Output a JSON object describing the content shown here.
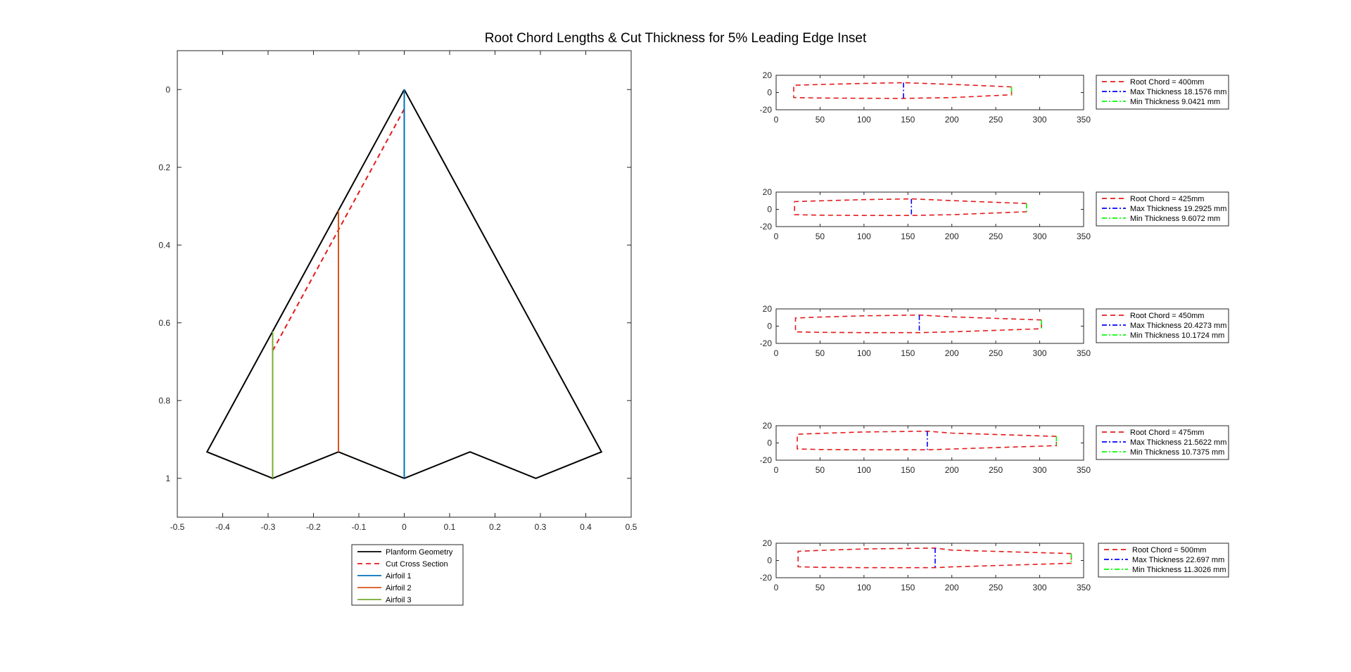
{
  "figure": {
    "title": "Root Chord Lengths & Cut Thickness for 5% Leading Edge Inset"
  },
  "chart_data": [
    {
      "type": "line",
      "title": "",
      "xlabel": "",
      "ylabel": "",
      "xlim": [
        -0.5,
        0.5
      ],
      "ylim": [
        -0.1,
        1.1
      ],
      "y_reversed": true,
      "grid": false,
      "legend_position": "below",
      "x_ticks": [
        -0.5,
        -0.4,
        -0.3,
        -0.2,
        -0.1,
        0,
        0.1,
        0.2,
        0.3,
        0.4,
        0.5
      ],
      "x_tick_labels": [
        "-0.5",
        "-0.4",
        "-0.3",
        "-0.2",
        "-0.1",
        "0",
        "0.1",
        "0.2",
        "0.3",
        "0.4",
        "0.5"
      ],
      "y_ticks": [
        0,
        0.2,
        0.4,
        0.6,
        0.8,
        1
      ],
      "y_tick_labels": [
        "0",
        "0.2",
        "0.4",
        "0.6",
        "0.8",
        "1"
      ],
      "series": [
        {
          "name": "Planform Geometry",
          "color": "#000000",
          "style": "solid",
          "x": [
            0,
            0.4346,
            0.2899,
            0.1449,
            0,
            -0.1449,
            -0.2899,
            -0.4346,
            0
          ],
          "y": [
            0,
            0.932,
            1.0,
            0.932,
            1.0,
            0.932,
            1.0,
            0.932,
            0
          ]
        },
        {
          "name": "Cut Cross Section",
          "color": "#e41a1c",
          "style": "dashed",
          "x": [
            0,
            -0.2899
          ],
          "y": [
            0.05,
            0.672
          ]
        },
        {
          "name": "Airfoil 1",
          "color": "#0072bd",
          "style": "solid",
          "x": [
            0,
            0
          ],
          "y": [
            0,
            1.0
          ]
        },
        {
          "name": "Airfoil 2",
          "color": "#d95319",
          "style": "solid",
          "x": [
            -0.1449,
            -0.1449
          ],
          "y": [
            0.311,
            0.932
          ]
        },
        {
          "name": "Airfoil 3",
          "color": "#77ac30",
          "style": "solid",
          "x": [
            -0.2899,
            -0.2899
          ],
          "y": [
            0.622,
            1.0
          ]
        }
      ]
    },
    {
      "type": "line",
      "xlim": [
        0,
        350
      ],
      "ylim": [
        -20,
        20
      ],
      "x_ticks": [
        0,
        50,
        100,
        150,
        200,
        250,
        300,
        350
      ],
      "x_tick_labels": [
        "0",
        "50",
        "100",
        "150",
        "200",
        "250",
        "300",
        "350"
      ],
      "y_ticks": [
        20,
        0,
        -20
      ],
      "y_tick_labels": [
        "20",
        "0",
        "-20"
      ],
      "series": [
        {
          "name": "Root Chord = 400mm",
          "color": "#e41a1c",
          "style": "dashed",
          "x": [
            268,
            200,
            145,
            100,
            50,
            20,
            20,
            50,
            100,
            145,
            200,
            268,
            268
          ],
          "y": [
            6.5,
            9.5,
            11.4,
            10.6,
            9.3,
            8.5,
            -5.8,
            -6.4,
            -6.7,
            -6.8,
            -5.9,
            -2.6,
            6.5
          ]
        },
        {
          "name": "Max Thickness 18.1576 mm",
          "color": "#0000ff",
          "style": "dashdot",
          "x": [
            145,
            145
          ],
          "y": [
            11.4,
            -6.8
          ]
        },
        {
          "name": "Min Thickness 9.0421 mm",
          "color": "#00ff00",
          "style": "dashdot",
          "x": [
            268,
            268
          ],
          "y": [
            6.5,
            -2.6
          ]
        }
      ]
    },
    {
      "type": "line",
      "xlim": [
        0,
        350
      ],
      "ylim": [
        -20,
        20
      ],
      "x_ticks": [
        0,
        50,
        100,
        150,
        200,
        250,
        300,
        350
      ],
      "x_tick_labels": [
        "0",
        "50",
        "100",
        "150",
        "200",
        "250",
        "300",
        "350"
      ],
      "y_ticks": [
        20,
        0,
        -20
      ],
      "y_tick_labels": [
        "20",
        "0",
        "-20"
      ],
      "series": [
        {
          "name": "Root Chord = 425mm",
          "color": "#e41a1c",
          "style": "dashed",
          "x": [
            285,
            200,
            154,
            100,
            50,
            21,
            21,
            50,
            100,
            154,
            200,
            285,
            285
          ],
          "y": [
            6.8,
            10.1,
            12.2,
            11.3,
            9.9,
            9.0,
            -6.2,
            -6.8,
            -7.1,
            -7.1,
            -6.2,
            -2.8,
            6.8
          ]
        },
        {
          "name": "Max Thickness 19.2925 mm",
          "color": "#0000ff",
          "style": "dashdot",
          "x": [
            154,
            154
          ],
          "y": [
            12.2,
            -7.1
          ]
        },
        {
          "name": "Min Thickness 9.6072 mm",
          "color": "#00ff00",
          "style": "dashdot",
          "x": [
            285,
            285
          ],
          "y": [
            6.8,
            -2.8
          ]
        }
      ]
    },
    {
      "type": "line",
      "xlim": [
        0,
        350
      ],
      "ylim": [
        -20,
        20
      ],
      "x_ticks": [
        0,
        50,
        100,
        150,
        200,
        250,
        300,
        350
      ],
      "x_tick_labels": [
        "0",
        "50",
        "100",
        "150",
        "200",
        "250",
        "300",
        "350"
      ],
      "y_ticks": [
        20,
        0,
        -20
      ],
      "y_tick_labels": [
        "20",
        "0",
        "-20"
      ],
      "series": [
        {
          "name": "Root Chord = 450mm",
          "color": "#e41a1c",
          "style": "dashed",
          "x": [
            302,
            200,
            163,
            100,
            50,
            22,
            22,
            50,
            100,
            163,
            200,
            302,
            302
          ],
          "y": [
            7.2,
            10.8,
            12.9,
            12.0,
            10.5,
            9.5,
            -6.6,
            -7.2,
            -7.5,
            -7.5,
            -6.6,
            -3.0,
            7.2
          ]
        },
        {
          "name": "Max Thickness 20.4273 mm",
          "color": "#0000ff",
          "style": "dashdot",
          "x": [
            163,
            163
          ],
          "y": [
            12.9,
            -7.5
          ]
        },
        {
          "name": "Min Thickness 10.1724 mm",
          "color": "#00ff00",
          "style": "dashdot",
          "x": [
            302,
            302
          ],
          "y": [
            7.2,
            -3.0
          ]
        }
      ]
    },
    {
      "type": "line",
      "xlim": [
        0,
        350
      ],
      "ylim": [
        -20,
        20
      ],
      "x_ticks": [
        0,
        50,
        100,
        150,
        200,
        250,
        300,
        350
      ],
      "x_tick_labels": [
        "0",
        "50",
        "100",
        "150",
        "200",
        "250",
        "300",
        "350"
      ],
      "y_ticks": [
        20,
        0,
        -20
      ],
      "y_tick_labels": [
        "20",
        "0",
        "-20"
      ],
      "series": [
        {
          "name": "Root Chord = 475mm",
          "color": "#e41a1c",
          "style": "dashed",
          "x": [
            319,
            200,
            172,
            100,
            50,
            24,
            24,
            50,
            100,
            172,
            200,
            319,
            319
          ],
          "y": [
            7.6,
            11.4,
            13.6,
            12.7,
            11.1,
            10.1,
            -6.9,
            -7.6,
            -7.9,
            -7.9,
            -7.0,
            -3.1,
            7.6
          ]
        },
        {
          "name": "Max Thickness 21.5622 mm",
          "color": "#0000ff",
          "style": "dashdot",
          "x": [
            172,
            172
          ],
          "y": [
            13.6,
            -7.9
          ]
        },
        {
          "name": "Min Thickness 10.7375 mm",
          "color": "#00ff00",
          "style": "dashdot",
          "x": [
            319,
            319
          ],
          "y": [
            7.6,
            -3.1
          ]
        }
      ]
    },
    {
      "type": "line",
      "xlim": [
        0,
        350
      ],
      "ylim": [
        -20,
        20
      ],
      "x_ticks": [
        0,
        50,
        100,
        150,
        200,
        250,
        300,
        350
      ],
      "x_tick_labels": [
        "0",
        "50",
        "100",
        "150",
        "200",
        "250",
        "300",
        "350"
      ],
      "y_ticks": [
        20,
        0,
        -20
      ],
      "y_tick_labels": [
        "20",
        "0",
        "-20"
      ],
      "series": [
        {
          "name": "Root Chord = 500mm",
          "color": "#e41a1c",
          "style": "dashed",
          "x": [
            336,
            200,
            181,
            100,
            50,
            25,
            25,
            50,
            100,
            181,
            200,
            336,
            336
          ],
          "y": [
            8.0,
            12.0,
            14.4,
            13.4,
            11.7,
            10.6,
            -7.3,
            -8.0,
            -8.3,
            -8.3,
            -7.4,
            -3.3,
            8.0
          ]
        },
        {
          "name": "Max Thickness 22.697 mm",
          "color": "#0000ff",
          "style": "dashdot",
          "x": [
            181,
            181
          ],
          "y": [
            14.4,
            -8.3
          ]
        },
        {
          "name": "Min Thickness 11.3026 mm",
          "color": "#00ff00",
          "style": "dashdot",
          "x": [
            336,
            336
          ],
          "y": [
            8.0,
            -3.3
          ]
        }
      ]
    }
  ]
}
